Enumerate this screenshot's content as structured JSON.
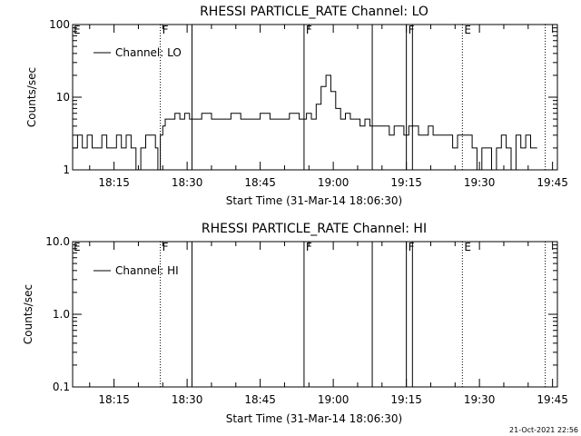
{
  "footer": {
    "date_stamp": "21-Oct-2021 22:56"
  },
  "chart_data": [
    {
      "type": "line",
      "title": "RHESSI PARTICLE_RATE Channel: LO",
      "xlabel": "Start Time (31-Mar-14 18:06:30)",
      "ylabel": "Counts/sec",
      "yscale": "log",
      "ylim": [
        1,
        100
      ],
      "xlim": [
        "18:06:30",
        "19:46:00"
      ],
      "x_ticks": [
        "18:15",
        "18:30",
        "18:45",
        "19:00",
        "19:15",
        "19:30",
        "19:45"
      ],
      "y_ticks": [
        "1",
        "10",
        "100"
      ],
      "legend": {
        "placement": "top-left",
        "entries": [
          "Channel: LO"
        ]
      },
      "marker_lines": [
        {
          "time": "18:24:30",
          "label": "F",
          "style": "dotted"
        },
        {
          "time": "18:31:00",
          "label": "",
          "style": "solid"
        },
        {
          "time": "18:54:00",
          "label": "F",
          "style": "solid"
        },
        {
          "time": "19:08:00",
          "label": "",
          "style": "solid"
        },
        {
          "time": "19:15:00",
          "label": "F",
          "style": "solid"
        },
        {
          "time": "19:16:15",
          "label": "",
          "style": "solid"
        },
        {
          "time": "19:26:30",
          "label": "E",
          "style": "dotted"
        },
        {
          "time": "19:43:30",
          "label": "",
          "style": "dotted"
        }
      ],
      "series": [
        {
          "name": "Channel: LO",
          "x": [
            "18:06:30",
            "18:07:30",
            "18:08:30",
            "18:09:30",
            "18:10:30",
            "18:11:30",
            "18:12:30",
            "18:13:30",
            "18:14:30",
            "18:15:30",
            "18:16:30",
            "18:17:30",
            "18:18:30",
            "18:19:30",
            "18:20:30",
            "18:21:30",
            "18:22:30",
            "18:23:30",
            "18:24:00",
            "18:24:30",
            "18:25:00",
            "18:25:30",
            "18:26:30",
            "18:27:30",
            "18:28:30",
            "18:29:30",
            "18:30:30",
            "18:31:30",
            "18:33:00",
            "18:35:00",
            "18:37:00",
            "18:39:00",
            "18:41:00",
            "18:43:00",
            "18:45:00",
            "18:47:00",
            "18:49:00",
            "18:51:00",
            "18:53:00",
            "18:54:30",
            "18:55:30",
            "18:56:30",
            "18:57:30",
            "18:58:30",
            "18:59:30",
            "19:00:30",
            "19:01:30",
            "19:02:30",
            "19:03:30",
            "19:04:30",
            "19:05:30",
            "19:06:30",
            "19:07:30",
            "19:08:30",
            "19:09:30",
            "19:10:30",
            "19:11:30",
            "19:12:30",
            "19:13:30",
            "19:14:30",
            "19:15:30",
            "19:16:30",
            "19:17:30",
            "19:18:30",
            "19:19:30",
            "19:20:30",
            "19:21:30",
            "19:22:30",
            "19:23:30",
            "19:24:30",
            "19:25:30",
            "19:26:30",
            "19:27:30",
            "19:28:30",
            "19:29:30",
            "19:30:30",
            "19:31:30",
            "19:32:30",
            "19:33:30",
            "19:34:30",
            "19:35:30",
            "19:36:30",
            "19:37:30",
            "19:38:30",
            "19:39:30",
            "19:40:30",
            "19:41:30"
          ],
          "y": [
            2,
            3,
            2,
            3,
            2,
            2,
            3,
            2,
            2,
            3,
            2,
            3,
            2,
            1,
            2,
            3,
            3,
            2,
            1,
            3,
            4,
            5,
            5,
            6,
            5,
            6,
            5,
            5,
            6,
            5,
            5,
            6,
            5,
            5,
            6,
            5,
            5,
            6,
            5,
            6,
            5,
            8,
            14,
            20,
            12,
            7,
            5,
            6,
            5,
            5,
            4,
            5,
            4,
            4,
            4,
            4,
            3,
            4,
            4,
            3,
            4,
            4,
            3,
            3,
            4,
            3,
            3,
            3,
            3,
            2,
            3,
            3,
            3,
            2,
            1,
            2,
            2,
            1,
            2,
            3,
            2,
            1,
            3,
            2,
            3,
            2,
            2
          ]
        }
      ]
    },
    {
      "type": "line",
      "title": "RHESSI PARTICLE_RATE Channel: HI",
      "xlabel": "Start Time (31-Mar-14 18:06:30)",
      "ylabel": "Counts/sec",
      "yscale": "log",
      "ylim": [
        0.1,
        10
      ],
      "xlim": [
        "18:06:30",
        "19:46:00"
      ],
      "x_ticks": [
        "18:15",
        "18:30",
        "18:45",
        "19:00",
        "19:15",
        "19:30",
        "19:45"
      ],
      "y_ticks": [
        "0.1",
        "1.0",
        "10.0"
      ],
      "legend": {
        "placement": "top-left",
        "entries": [
          "Channel: HI"
        ]
      },
      "marker_lines": [
        {
          "time": "18:24:30",
          "label": "F",
          "style": "dotted"
        },
        {
          "time": "18:31:00",
          "label": "",
          "style": "solid"
        },
        {
          "time": "18:54:00",
          "label": "F",
          "style": "solid"
        },
        {
          "time": "19:08:00",
          "label": "",
          "style": "solid"
        },
        {
          "time": "19:15:00",
          "label": "F",
          "style": "solid"
        },
        {
          "time": "19:16:15",
          "label": "",
          "style": "solid"
        },
        {
          "time": "19:26:30",
          "label": "E",
          "style": "dotted"
        },
        {
          "time": "19:43:30",
          "label": "",
          "style": "dotted"
        }
      ],
      "series": [
        {
          "name": "Channel: HI",
          "x": [],
          "y": []
        }
      ]
    }
  ]
}
